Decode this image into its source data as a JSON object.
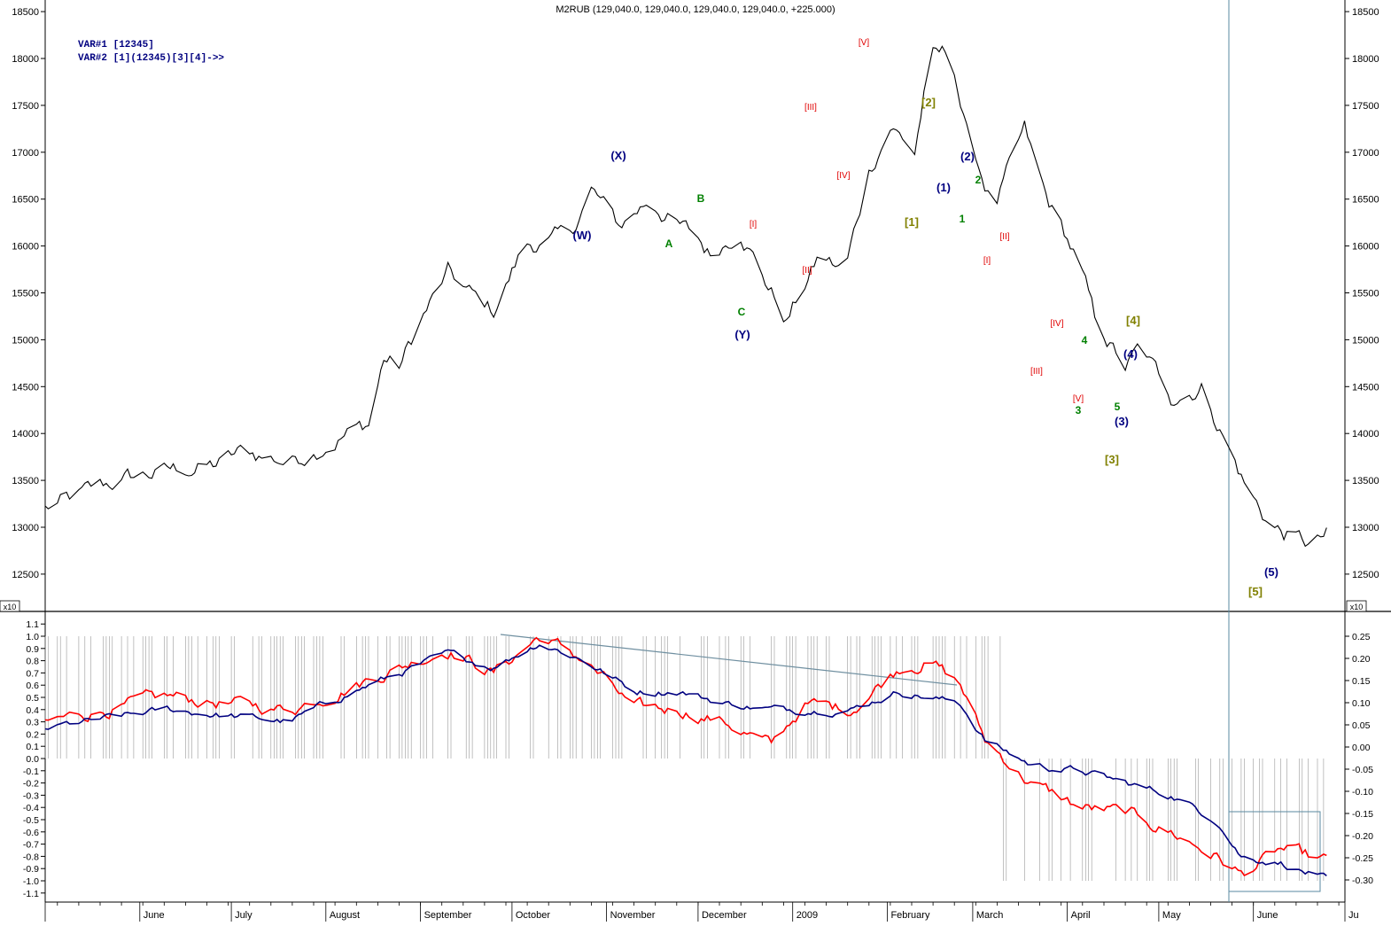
{
  "header": {
    "title": "M2RUB (129,040.0, 129,040.0, 129,040.0, 129,040.0, +225.000)"
  },
  "legend": {
    "var1": "VAR#1 [12345]",
    "var2": "VAR#2 [1](12345)[3][4]->>"
  },
  "scale_markers": {
    "left": "x10",
    "right": "x10"
  },
  "colors": {
    "price": "#000000",
    "red_line": "#ff0000",
    "blue_line": "#000080",
    "grid_bars": "#9a9a9a",
    "trendline": "#6f8fa0",
    "wave_blue": "#000080",
    "wave_green": "#008000",
    "wave_red": "#e00000",
    "wave_olive": "#808000"
  },
  "chart_data": [
    {
      "type": "line",
      "series": [
        {
          "x": [
            "2008-05-01",
            "2008-05-10",
            "2008-05-25",
            "2008-06-10",
            "2008-06-25",
            "2008-07-05",
            "2008-07-20",
            "2008-08-01",
            "2008-08-15",
            "2008-08-20",
            "2008-08-25",
            "2008-09-01",
            "2008-09-10",
            "2008-09-20",
            "2008-09-25",
            "2008-10-05",
            "2008-10-20",
            "2008-10-27",
            "2008-11-05",
            "2008-11-15",
            "2008-11-25",
            "2008-11-30",
            "2008-12-05",
            "2008-12-15",
            "2008-12-22",
            "2008-12-30",
            "2009-01-10",
            "2009-01-18",
            "2009-01-26",
            "2009-02-02",
            "2009-02-10",
            "2009-02-15",
            "2009-02-22",
            "2009-02-27",
            "2009-03-08",
            "2009-03-18",
            "2009-03-25",
            "2009-03-30",
            "2009-04-05",
            "2009-04-10",
            "2009-04-20",
            "2009-04-25",
            "2009-05-05",
            "2009-05-15",
            "2009-05-22",
            "2009-05-30",
            "2009-06-05",
            "2009-06-10",
            "2009-06-20",
            "2009-06-25"
          ],
          "values": [
            13200,
            13300,
            13500,
            13600,
            13650,
            13800,
            13700,
            13900,
            14100,
            14800,
            14700,
            15200,
            15700,
            15400,
            15300,
            16000,
            16100,
            16600,
            16200,
            16500,
            16200,
            16100,
            15900,
            16200,
            15700,
            15200,
            15900,
            15700,
            16800,
            17300,
            17000,
            18000,
            18050,
            17200,
            16400,
            17200,
            16500,
            16200,
            15800,
            15200,
            14700,
            14900,
            14400,
            14500,
            14000,
            13400,
            13100,
            12950,
            12800,
            12900
          ]
        }
      ],
      "waves": [
        {
          "label": "(W)",
          "color": "blue"
        },
        {
          "label": "(X)",
          "color": "blue"
        },
        {
          "label": "A",
          "color": "green"
        },
        {
          "label": "B",
          "color": "green"
        },
        {
          "label": "C",
          "color": "green"
        },
        {
          "label": "(Y)",
          "color": "blue"
        },
        {
          "label": "[I]",
          "color": "red"
        },
        {
          "label": "[II]",
          "color": "red"
        },
        {
          "label": "[III]",
          "color": "red"
        },
        {
          "label": "[IV]",
          "color": "red"
        },
        {
          "label": "[V]",
          "color": "red"
        },
        {
          "label": "[1]",
          "color": "olive"
        },
        {
          "label": "[2]",
          "color": "olive"
        },
        {
          "label": "(1)",
          "color": "blue"
        },
        {
          "label": "(2)",
          "color": "blue"
        },
        {
          "label": "1",
          "color": "green"
        },
        {
          "label": "2",
          "color": "green"
        },
        {
          "label": "[I]",
          "color": "red"
        },
        {
          "label": "[II]",
          "color": "red"
        },
        {
          "label": "[III]",
          "color": "red"
        },
        {
          "label": "[IV]",
          "color": "red"
        },
        {
          "label": "[V]",
          "color": "red"
        },
        {
          "label": "3",
          "color": "green"
        },
        {
          "label": "4",
          "color": "green"
        },
        {
          "label": "5",
          "color": "green"
        },
        {
          "label": "(3)",
          "color": "blue"
        },
        {
          "label": "(4)",
          "color": "blue"
        },
        {
          "label": "(5)",
          "color": "blue"
        },
        {
          "label": "[3]",
          "color": "olive"
        },
        {
          "label": "[4]",
          "color": "olive"
        },
        {
          "label": "[5]",
          "color": "olive"
        }
      ],
      "yticks": [
        "12500",
        "13000",
        "13500",
        "14000",
        "14500",
        "15000",
        "15500",
        "16000",
        "16500",
        "17000",
        "17500",
        "18000",
        "18500"
      ],
      "ylim": [
        12200,
        18600
      ],
      "grid": false
    },
    {
      "type": "line",
      "series": [
        {
          "color": "red",
          "x": [
            "2008-05-01",
            "2008-06-10",
            "2008-07-20",
            "2008-08-10",
            "2008-09-10",
            "2008-09-25",
            "2008-10-10",
            "2008-10-25",
            "2008-11-10",
            "2008-11-25",
            "2008-12-10",
            "2008-12-25",
            "2009-01-05",
            "2009-01-20",
            "2009-02-05",
            "2009-02-15",
            "2009-02-25",
            "2009-03-05",
            "2009-03-20",
            "2009-04-05",
            "2009-04-20",
            "2009-05-05",
            "2009-05-20",
            "2009-05-28",
            "2009-06-10",
            "2009-06-25"
          ],
          "values": [
            0.3,
            0.5,
            0.4,
            0.6,
            0.9,
            0.7,
            1.0,
            0.8,
            0.4,
            0.4,
            0.3,
            0.1,
            0.45,
            0.4,
            0.75,
            0.8,
            0.6,
            0.15,
            -0.2,
            -0.4,
            -0.45,
            -0.6,
            -0.8,
            -0.95,
            -0.75,
            -0.85
          ]
        },
        {
          "color": "blue",
          "x": [
            "2008-05-01",
            "2008-06-10",
            "2008-07-20",
            "2008-08-10",
            "2008-09-10",
            "2008-09-25",
            "2008-10-10",
            "2008-10-25",
            "2008-11-10",
            "2008-11-25",
            "2008-12-10",
            "2008-12-25",
            "2009-01-05",
            "2009-01-20",
            "2009-02-05",
            "2009-02-15",
            "2009-02-25",
            "2009-03-05",
            "2009-03-20",
            "2009-04-05",
            "2009-04-20",
            "2009-05-05",
            "2009-05-20",
            "2009-05-28",
            "2009-06-10",
            "2009-06-25"
          ],
          "values": [
            0.25,
            0.4,
            0.3,
            0.55,
            0.85,
            0.75,
            0.95,
            0.8,
            0.55,
            0.55,
            0.45,
            0.4,
            0.4,
            0.4,
            0.55,
            0.5,
            0.45,
            0.15,
            -0.05,
            -0.1,
            -0.2,
            -0.3,
            -0.5,
            -0.8,
            -0.85,
            -1.0
          ]
        }
      ],
      "yticks_left": [
        "1.1",
        "1.0",
        "0.9",
        "0.8",
        "0.7",
        "0.6",
        "0.5",
        "0.4",
        "0.3",
        "0.2",
        "0.1",
        "0.0",
        "-0.1",
        "-0.2",
        "-0.3",
        "-0.4",
        "-0.5",
        "-0.6",
        "-0.7",
        "-0.8",
        "-0.9",
        "-1.0",
        "-1.1"
      ],
      "yticks_right": [
        "0.25",
        "0.20",
        "0.15",
        "0.10",
        "0.05",
        "0.00",
        "-0.05",
        "-0.10",
        "-0.15",
        "-0.20",
        "-0.25",
        "-0.30"
      ],
      "ylim": [
        -1.1,
        1.1
      ],
      "xticks": [
        "June",
        "July",
        "August",
        "September",
        "October",
        "November",
        "December",
        "2009",
        "February",
        "March",
        "April",
        "May",
        "June",
        "Ju"
      ]
    }
  ]
}
